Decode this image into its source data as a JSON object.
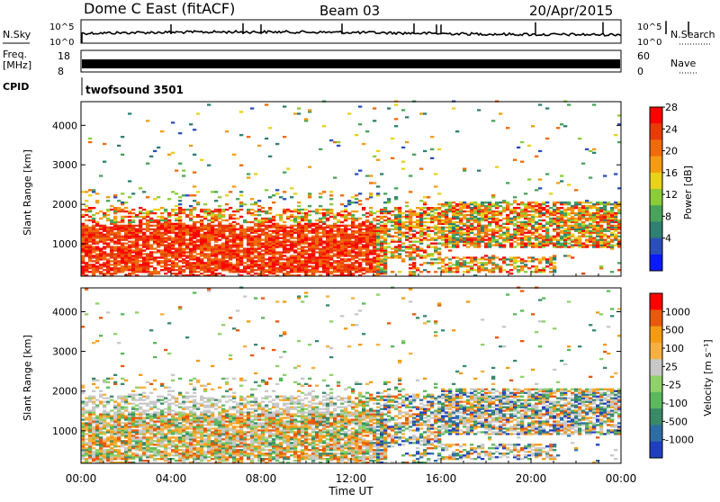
{
  "header": {
    "title": "Dome C East (fitACF)",
    "beam": "Beam 03",
    "date": "20/Apr/2015"
  },
  "panels": {
    "nsky": {
      "label": "N.Sky",
      "right_label": "N.Search",
      "left_ticks": [
        "10^5",
        "10^0"
      ],
      "right_ticks": [
        "10^5",
        "10^0"
      ]
    },
    "freq": {
      "label_line1": "Freq.",
      "label_line2": "[MHz]",
      "right_label": "Nave",
      "left_ticks": [
        "18",
        "8"
      ],
      "right_ticks": [
        "60",
        "0"
      ]
    },
    "cpid": {
      "label": "CPID",
      "value": "twofsound 3501"
    }
  },
  "chart_data": [
    {
      "type": "heatmap",
      "name": "power",
      "ylabel": "Slant Range [km]",
      "xlabel": "",
      "x_ticks": [
        "00:00",
        "04:00",
        "08:00",
        "12:00",
        "16:00",
        "20:00",
        "00:00"
      ],
      "x_range_hours": [
        0,
        24
      ],
      "y_ticks": [
        "1000",
        "2000",
        "3000",
        "4000"
      ],
      "y_range_km": [
        180,
        4600
      ],
      "colorbar": {
        "label": "Power [dB]",
        "ticks": [
          "4",
          "8",
          "12",
          "16",
          "20",
          "24",
          "28"
        ],
        "colors": [
          "#0a1aff",
          "#2a4fb8",
          "#2f7f72",
          "#4aa35a",
          "#8ccc3a",
          "#e8d21a",
          "#f39c12",
          "#f06a0a",
          "#e93a0a",
          "#ff0000"
        ]
      }
    },
    {
      "type": "heatmap",
      "name": "velocity",
      "ylabel": "Slant Range [km]",
      "xlabel": "Time UT",
      "x_ticks": [
        "00:00",
        "04:00",
        "08:00",
        "12:00",
        "16:00",
        "20:00",
        "00:00"
      ],
      "x_range_hours": [
        0,
        24
      ],
      "y_ticks": [
        "1000",
        "2000",
        "3000",
        "4000"
      ],
      "y_range_km": [
        180,
        4600
      ],
      "colorbar": {
        "label": "Velocity [m s⁻¹]",
        "ticks": [
          "1000",
          "500",
          "100",
          "25",
          "-25",
          "-100",
          "-500",
          "-1000"
        ],
        "colors": [
          "#1f3fbf",
          "#2e6da4",
          "#3a8a6a",
          "#5cb85c",
          "#8fd16a",
          "#c8c8c8",
          "#f5b041",
          "#f39c12",
          "#e8590c",
          "#ff0000"
        ]
      }
    }
  ]
}
